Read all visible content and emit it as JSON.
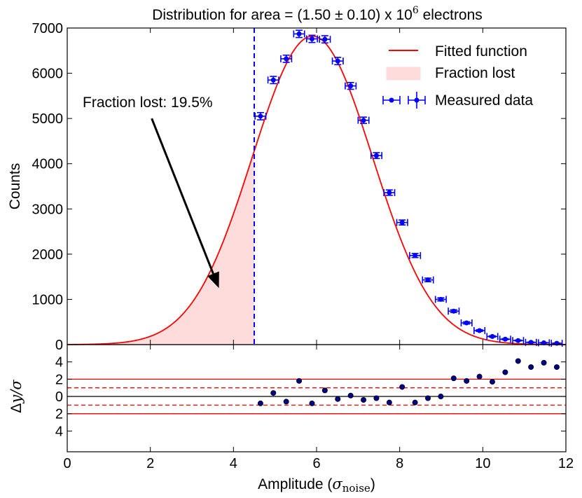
{
  "chart_data": {
    "type": "line",
    "title": {
      "prefix": "Distribution for area = (1.50 ± 0.10) x 10",
      "exponent": "6",
      "suffix": " electrons"
    },
    "main_panel": {
      "xlim": [
        0,
        12
      ],
      "ylim": [
        0,
        7000
      ],
      "ylabel": "Counts",
      "yticks": [
        0,
        1000,
        2000,
        3000,
        4000,
        5000,
        6000,
        7000
      ],
      "threshold_x": 4.5,
      "fitted_function": {
        "amplitude": 6820,
        "mean": 5.9,
        "sigma": 1.45
      },
      "measured_data": {
        "name": "Measured data",
        "x_err": 0.13,
        "points": [
          {
            "x": 4.65,
            "y": 5050,
            "yerr": 80
          },
          {
            "x": 4.96,
            "y": 5850,
            "yerr": 80
          },
          {
            "x": 5.27,
            "y": 6320,
            "yerr": 80
          },
          {
            "x": 5.58,
            "y": 6870,
            "yerr": 80
          },
          {
            "x": 5.89,
            "y": 6760,
            "yerr": 80
          },
          {
            "x": 6.2,
            "y": 6750,
            "yerr": 80
          },
          {
            "x": 6.51,
            "y": 6270,
            "yerr": 80
          },
          {
            "x": 6.82,
            "y": 5720,
            "yerr": 75
          },
          {
            "x": 7.13,
            "y": 4960,
            "yerr": 70
          },
          {
            "x": 7.44,
            "y": 4180,
            "yerr": 65
          },
          {
            "x": 7.75,
            "y": 3360,
            "yerr": 60
          },
          {
            "x": 8.06,
            "y": 2700,
            "yerr": 55
          },
          {
            "x": 8.37,
            "y": 1970,
            "yerr": 45
          },
          {
            "x": 8.68,
            "y": 1430,
            "yerr": 40
          },
          {
            "x": 8.99,
            "y": 1000,
            "yerr": 35
          },
          {
            "x": 9.3,
            "y": 740,
            "yerr": 30
          },
          {
            "x": 9.61,
            "y": 480,
            "yerr": 25
          },
          {
            "x": 9.92,
            "y": 310,
            "yerr": 20
          },
          {
            "x": 10.23,
            "y": 180,
            "yerr": 15
          },
          {
            "x": 10.54,
            "y": 120,
            "yerr": 12
          },
          {
            "x": 10.85,
            "y": 90,
            "yerr": 10
          },
          {
            "x": 11.16,
            "y": 50,
            "yerr": 8
          },
          {
            "x": 11.47,
            "y": 40,
            "yerr": 7
          },
          {
            "x": 11.78,
            "y": 30,
            "yerr": 6
          }
        ]
      }
    },
    "residual_panel": {
      "ylim": [
        -6.4,
        6.0
      ],
      "yticks": [
        4,
        2,
        0,
        -2,
        -4
      ],
      "ytick_labels": [
        "4",
        "2",
        "0",
        "2",
        "4"
      ],
      "solid_lines": [
        2,
        -2
      ],
      "dashed_lines": [
        1,
        -1
      ],
      "zero_line": 0,
      "residuals": [
        {
          "x": 4.65,
          "y": -0.8
        },
        {
          "x": 4.96,
          "y": 0.4
        },
        {
          "x": 5.27,
          "y": -0.6
        },
        {
          "x": 5.58,
          "y": 1.8
        },
        {
          "x": 5.89,
          "y": -0.8
        },
        {
          "x": 6.2,
          "y": 0.7
        },
        {
          "x": 6.51,
          "y": -0.3
        },
        {
          "x": 6.82,
          "y": 0.1
        },
        {
          "x": 7.13,
          "y": -0.4
        },
        {
          "x": 7.44,
          "y": -0.2
        },
        {
          "x": 7.75,
          "y": -0.7
        },
        {
          "x": 8.06,
          "y": 1.1
        },
        {
          "x": 8.37,
          "y": -0.7
        },
        {
          "x": 8.68,
          "y": -0.2
        },
        {
          "x": 8.99,
          "y": 0.0
        },
        {
          "x": 9.3,
          "y": 2.1
        },
        {
          "x": 9.61,
          "y": 1.8
        },
        {
          "x": 9.92,
          "y": 2.3
        },
        {
          "x": 10.23,
          "y": 1.7
        },
        {
          "x": 10.54,
          "y": 2.8
        },
        {
          "x": 10.85,
          "y": 4.1
        },
        {
          "x": 11.16,
          "y": 3.4
        },
        {
          "x": 11.47,
          "y": 3.9
        },
        {
          "x": 11.78,
          "y": 3.4
        }
      ]
    },
    "xlabel_prefix": "Amplitude (",
    "xlabel_symbol": "σ",
    "xlabel_subscript": "noise",
    "xlabel_suffix": ")",
    "xticks": [
      0,
      2,
      4,
      6,
      8,
      10,
      12
    ],
    "residual_ylabel_delta": "Δ",
    "residual_ylabel_rest": "y/σ",
    "annotation": {
      "text": "Fraction lost: 19.5%",
      "arrow_tail": {
        "x": 2.0,
        "y": 5000
      },
      "arrow_head": {
        "x": 3.65,
        "y": 1250
      }
    },
    "legend": {
      "position": "top-right",
      "entries": [
        "Fitted function",
        "Fraction lost",
        "Measured data"
      ]
    },
    "colors": {
      "fit": "#ff0000",
      "fill": "#ffdcdc",
      "data": "#0000ff",
      "threshold": "#0000ff",
      "residual_marker": "#00008b",
      "arrow": "#000000"
    }
  }
}
